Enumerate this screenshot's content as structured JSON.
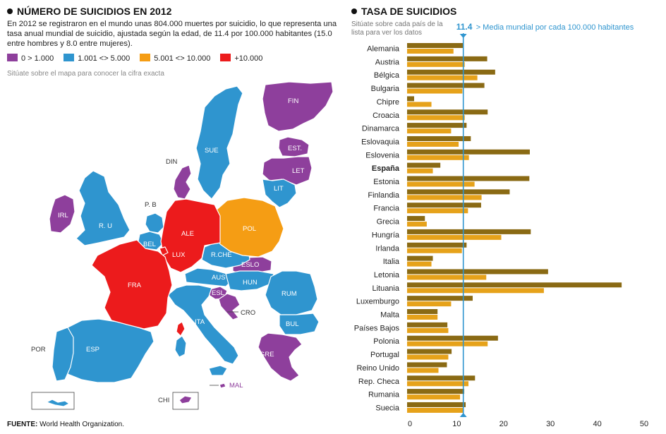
{
  "left": {
    "title": "NÚMERO DE SUICIDIOS EN 2012",
    "intro": "En 2012 se registraron en el mundo unas 804.000 muertes por suicidio, lo que representa una tasa anual mundial de suicidio, ajustada según la edad, de 11.4 por 100.000 habitantes (15.0 entre hombres y 8.0 entre mujeres).",
    "legend": [
      {
        "label": "0 > 1.000",
        "color": "#8e3f9c"
      },
      {
        "label": "1.001 <> 5.000",
        "color": "#2f95cf"
      },
      {
        "label": "5.001 <> 10.000",
        "color": "#f59d14"
      },
      {
        "label": "+10.000",
        "color": "#ec1b1c"
      }
    ],
    "hint": "Sitúate sobre el mapa para conocer la cifra exacta"
  },
  "map_labels": [
    "FIN",
    "SUE",
    "EST.",
    "LET",
    "DIN",
    "LIT",
    "IRL",
    "R. U",
    "P. B",
    "BEL",
    "ALE",
    "POL",
    "LUX",
    "R.CHE",
    "ESLO",
    "AUS",
    "HUN",
    "RUM",
    "FRA",
    "ESL",
    "CRO",
    "ITA",
    "BUL",
    "POR",
    "ESP",
    "GRE",
    "MAL",
    "CHI"
  ],
  "right": {
    "title": "TASA DE SUICIDIOS",
    "hint": "Sitúate sobre cada país de la lista para ver los datos",
    "reference": {
      "value": "11.4",
      "label": "> Media mundial por cada 100.000 habitantes"
    }
  },
  "source": {
    "label": "FUENTE:",
    "text": "World Health Organization."
  },
  "chart_data": {
    "type": "bar",
    "orientation": "horizontal",
    "title": "TASA DE SUICIDIOS",
    "xlim": [
      0,
      50
    ],
    "xticks": [
      0,
      10,
      20,
      30,
      40,
      50
    ],
    "reference_line": 11.4,
    "highlight": "España",
    "series_colors": [
      "#8a6a14",
      "#e6a21a"
    ],
    "categories": [
      "Alemania",
      "Austria",
      "Bélgica",
      "Bulgaria",
      "Chipre",
      "Croacia",
      "Dinamarca",
      "Eslovaquia",
      "Eslovenia",
      "España",
      "Estonia",
      "Finlandia",
      "Francia",
      "Grecia",
      "Hungría",
      "Irlanda",
      "Italia",
      "Letonia",
      "Lituania",
      "Luxemburgo",
      "Malta",
      "Países Bajos",
      "Polonia",
      "Portugal",
      "Reino Unido",
      "Rep. Checa",
      "Rumania",
      "Suecia"
    ],
    "series": [
      {
        "values": [
          11.5,
          16.5,
          18.2,
          15.9,
          0.9,
          16.6,
          12.1,
          13.0,
          25.6,
          6.5,
          25.5,
          21.3,
          15.2,
          3.2,
          25.8,
          12.1,
          4.9,
          29.5,
          45.2,
          13.4,
          5.9,
          8.0,
          18.8,
          8.9,
          7.9,
          13.9,
          11.6,
          11.9
        ]
      },
      {
        "values": [
          9.3,
          11.7,
          14.4,
          11.2,
          4.6,
          11.7,
          8.8,
          10.4,
          12.6,
          4.9,
          13.8,
          15.3,
          12.4,
          3.6,
          19.5,
          11.1,
          4.6,
          16.3,
          28.6,
          8.8,
          5.9,
          8.2,
          16.6,
          8.2,
          6.1,
          12.5,
          10.7,
          11.4
        ]
      }
    ]
  }
}
